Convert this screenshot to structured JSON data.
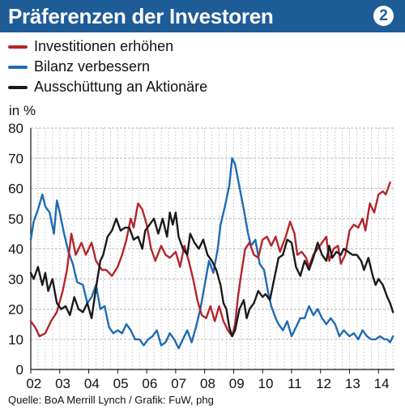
{
  "header": {
    "title": "Präferenzen der Investoren",
    "badge": "2"
  },
  "footer": {
    "source": "Quelle: BoA Merrill Lynch / Grafik: FuW, phg"
  },
  "chart_data": {
    "type": "line",
    "title": "Präferenzen der Investoren",
    "ylabel": "in %",
    "ylim": [
      0,
      80
    ],
    "yticks": [
      0,
      10,
      20,
      30,
      40,
      50,
      60,
      70,
      80
    ],
    "xlim": [
      2002,
      2014.55
    ],
    "xtick_labels": [
      "02",
      "03",
      "04",
      "05",
      "06",
      "07",
      "08",
      "09",
      "10",
      "11",
      "12",
      "13",
      "14"
    ],
    "grid": true,
    "legend": "top-left",
    "series": [
      {
        "name": "Investitionen erhöhen",
        "color": "#b3262d",
        "points": [
          [
            2002.0,
            16
          ],
          [
            2002.15,
            14
          ],
          [
            2002.3,
            11
          ],
          [
            2002.5,
            12
          ],
          [
            2002.7,
            16
          ],
          [
            2002.9,
            19
          ],
          [
            2003.1,
            26
          ],
          [
            2003.25,
            33
          ],
          [
            2003.4,
            45
          ],
          [
            2003.55,
            38
          ],
          [
            2003.75,
            42
          ],
          [
            2003.9,
            38
          ],
          [
            2004.1,
            42
          ],
          [
            2004.25,
            36
          ],
          [
            2004.45,
            33
          ],
          [
            2004.6,
            33
          ],
          [
            2004.8,
            31
          ],
          [
            2005.0,
            34
          ],
          [
            2005.15,
            38
          ],
          [
            2005.3,
            43
          ],
          [
            2005.45,
            50
          ],
          [
            2005.55,
            47
          ],
          [
            2005.7,
            55
          ],
          [
            2005.85,
            53
          ],
          [
            2006.0,
            48
          ],
          [
            2006.15,
            40
          ],
          [
            2006.3,
            36
          ],
          [
            2006.5,
            41
          ],
          [
            2006.65,
            38
          ],
          [
            2006.8,
            37
          ],
          [
            2007.0,
            39
          ],
          [
            2007.15,
            34
          ],
          [
            2007.3,
            41
          ],
          [
            2007.45,
            36
          ],
          [
            2007.6,
            30
          ],
          [
            2007.75,
            23
          ],
          [
            2007.9,
            18
          ],
          [
            2008.05,
            17
          ],
          [
            2008.2,
            21
          ],
          [
            2008.35,
            16
          ],
          [
            2008.5,
            21
          ],
          [
            2008.65,
            16
          ],
          [
            2008.8,
            13
          ],
          [
            2008.95,
            11
          ],
          [
            2009.05,
            15
          ],
          [
            2009.15,
            24
          ],
          [
            2009.25,
            31
          ],
          [
            2009.4,
            40
          ],
          [
            2009.55,
            42
          ],
          [
            2009.7,
            38
          ],
          [
            2009.85,
            37
          ],
          [
            2010.0,
            43
          ],
          [
            2010.15,
            44
          ],
          [
            2010.3,
            41
          ],
          [
            2010.45,
            44
          ],
          [
            2010.6,
            39
          ],
          [
            2010.8,
            44
          ],
          [
            2010.95,
            49
          ],
          [
            2011.1,
            45
          ],
          [
            2011.2,
            38
          ],
          [
            2011.35,
            39
          ],
          [
            2011.5,
            37
          ],
          [
            2011.6,
            34
          ],
          [
            2011.75,
            38
          ],
          [
            2011.9,
            40
          ],
          [
            2012.05,
            42
          ],
          [
            2012.2,
            44
          ],
          [
            2012.3,
            36
          ],
          [
            2012.45,
            40
          ],
          [
            2012.6,
            41
          ],
          [
            2012.7,
            35
          ],
          [
            2012.85,
            38
          ],
          [
            2013.0,
            46
          ],
          [
            2013.15,
            48
          ],
          [
            2013.3,
            47
          ],
          [
            2013.45,
            50
          ],
          [
            2013.55,
            46
          ],
          [
            2013.7,
            55
          ],
          [
            2013.85,
            52
          ],
          [
            2014.0,
            58
          ],
          [
            2014.15,
            59
          ],
          [
            2014.25,
            58
          ],
          [
            2014.4,
            62
          ]
        ]
      },
      {
        "name": "Bilanz verbessern",
        "color": "#1f6bb3",
        "points": [
          [
            2002.0,
            43
          ],
          [
            2002.1,
            49
          ],
          [
            2002.25,
            53
          ],
          [
            2002.4,
            58
          ],
          [
            2002.5,
            54
          ],
          [
            2002.65,
            52
          ],
          [
            2002.8,
            45
          ],
          [
            2002.9,
            56
          ],
          [
            2003.0,
            52
          ],
          [
            2003.15,
            45
          ],
          [
            2003.3,
            39
          ],
          [
            2003.45,
            35
          ],
          [
            2003.6,
            29
          ],
          [
            2003.8,
            28
          ],
          [
            2003.95,
            22
          ],
          [
            2004.1,
            24
          ],
          [
            2004.25,
            28
          ],
          [
            2004.4,
            20
          ],
          [
            2004.55,
            21
          ],
          [
            2004.7,
            14
          ],
          [
            2004.85,
            12
          ],
          [
            2005.0,
            13
          ],
          [
            2005.15,
            12
          ],
          [
            2005.3,
            15
          ],
          [
            2005.45,
            13
          ],
          [
            2005.6,
            10
          ],
          [
            2005.75,
            10
          ],
          [
            2005.9,
            8
          ],
          [
            2006.05,
            10
          ],
          [
            2006.2,
            11
          ],
          [
            2006.35,
            13
          ],
          [
            2006.5,
            8
          ],
          [
            2006.65,
            9
          ],
          [
            2006.8,
            12
          ],
          [
            2006.95,
            10
          ],
          [
            2007.1,
            7
          ],
          [
            2007.25,
            10
          ],
          [
            2007.4,
            13
          ],
          [
            2007.55,
            9
          ],
          [
            2007.7,
            14
          ],
          [
            2007.85,
            20
          ],
          [
            2008.0,
            28
          ],
          [
            2008.15,
            36
          ],
          [
            2008.3,
            32
          ],
          [
            2008.45,
            40
          ],
          [
            2008.55,
            48
          ],
          [
            2008.7,
            54
          ],
          [
            2008.85,
            61
          ],
          [
            2008.95,
            70
          ],
          [
            2009.05,
            68
          ],
          [
            2009.15,
            63
          ],
          [
            2009.25,
            58
          ],
          [
            2009.35,
            53
          ],
          [
            2009.5,
            45
          ],
          [
            2009.6,
            41
          ],
          [
            2009.75,
            43
          ],
          [
            2009.9,
            35
          ],
          [
            2010.05,
            33
          ],
          [
            2010.2,
            25
          ],
          [
            2010.3,
            21
          ],
          [
            2010.45,
            17
          ],
          [
            2010.55,
            15
          ],
          [
            2010.7,
            13
          ],
          [
            2010.85,
            16
          ],
          [
            2011.0,
            11
          ],
          [
            2011.15,
            14
          ],
          [
            2011.3,
            17
          ],
          [
            2011.45,
            17
          ],
          [
            2011.6,
            21
          ],
          [
            2011.75,
            18
          ],
          [
            2011.9,
            20
          ],
          [
            2012.05,
            17
          ],
          [
            2012.2,
            15
          ],
          [
            2012.35,
            17
          ],
          [
            2012.5,
            15
          ],
          [
            2012.65,
            11
          ],
          [
            2012.8,
            13
          ],
          [
            2013.0,
            11
          ],
          [
            2013.15,
            12
          ],
          [
            2013.3,
            10
          ],
          [
            2013.45,
            13
          ],
          [
            2013.6,
            11
          ],
          [
            2013.75,
            10
          ],
          [
            2013.9,
            10
          ],
          [
            2014.05,
            11
          ],
          [
            2014.2,
            10
          ],
          [
            2014.3,
            10
          ],
          [
            2014.4,
            9
          ],
          [
            2014.5,
            11
          ]
        ]
      },
      {
        "name": "Ausschüttung an Aktionäre",
        "color": "#1a1a1a",
        "points": [
          [
            2002.0,
            32
          ],
          [
            2002.1,
            30
          ],
          [
            2002.25,
            34
          ],
          [
            2002.4,
            28
          ],
          [
            2002.5,
            32
          ],
          [
            2002.6,
            26
          ],
          [
            2002.75,
            30
          ],
          [
            2002.9,
            22
          ],
          [
            2003.05,
            20
          ],
          [
            2003.2,
            21
          ],
          [
            2003.35,
            18
          ],
          [
            2003.5,
            24
          ],
          [
            2003.65,
            20
          ],
          [
            2003.8,
            19
          ],
          [
            2003.95,
            22
          ],
          [
            2004.1,
            17
          ],
          [
            2004.25,
            27
          ],
          [
            2004.4,
            36
          ],
          [
            2004.5,
            38
          ],
          [
            2004.65,
            44
          ],
          [
            2004.8,
            46
          ],
          [
            2004.95,
            50
          ],
          [
            2005.1,
            46
          ],
          [
            2005.25,
            47
          ],
          [
            2005.4,
            47
          ],
          [
            2005.55,
            43
          ],
          [
            2005.7,
            44
          ],
          [
            2005.85,
            40
          ],
          [
            2005.95,
            46
          ],
          [
            2006.1,
            48
          ],
          [
            2006.25,
            50
          ],
          [
            2006.4,
            45
          ],
          [
            2006.55,
            50
          ],
          [
            2006.7,
            44
          ],
          [
            2006.8,
            52
          ],
          [
            2006.9,
            48
          ],
          [
            2007.0,
            52
          ],
          [
            2007.1,
            44
          ],
          [
            2007.25,
            40
          ],
          [
            2007.4,
            38
          ],
          [
            2007.5,
            45
          ],
          [
            2007.65,
            42
          ],
          [
            2007.8,
            40
          ],
          [
            2007.95,
            43
          ],
          [
            2008.1,
            38
          ],
          [
            2008.25,
            36
          ],
          [
            2008.4,
            33
          ],
          [
            2008.55,
            28
          ],
          [
            2008.65,
            22
          ],
          [
            2008.75,
            20
          ],
          [
            2008.85,
            14
          ],
          [
            2008.95,
            11
          ],
          [
            2009.05,
            13
          ],
          [
            2009.2,
            20
          ],
          [
            2009.35,
            23
          ],
          [
            2009.45,
            17
          ],
          [
            2009.55,
            20
          ],
          [
            2009.7,
            22
          ],
          [
            2009.85,
            26
          ],
          [
            2010.0,
            24
          ],
          [
            2010.1,
            25
          ],
          [
            2010.25,
            23
          ],
          [
            2010.4,
            30
          ],
          [
            2010.55,
            37
          ],
          [
            2010.7,
            38
          ],
          [
            2010.85,
            43
          ],
          [
            2011.0,
            42
          ],
          [
            2011.15,
            34
          ],
          [
            2011.3,
            31
          ],
          [
            2011.45,
            36
          ],
          [
            2011.6,
            33
          ],
          [
            2011.75,
            37
          ],
          [
            2011.9,
            42
          ],
          [
            2012.05,
            38
          ],
          [
            2012.2,
            36
          ],
          [
            2012.3,
            41
          ],
          [
            2012.4,
            37
          ],
          [
            2012.55,
            39
          ],
          [
            2012.7,
            38
          ],
          [
            2012.8,
            40
          ],
          [
            2012.95,
            39
          ],
          [
            2013.1,
            38
          ],
          [
            2013.25,
            38
          ],
          [
            2013.4,
            36
          ],
          [
            2013.5,
            33
          ],
          [
            2013.65,
            37
          ],
          [
            2013.8,
            31
          ],
          [
            2013.9,
            28
          ],
          [
            2014.0,
            30
          ],
          [
            2014.15,
            28
          ],
          [
            2014.3,
            24
          ],
          [
            2014.4,
            22
          ],
          [
            2014.5,
            19
          ]
        ]
      }
    ]
  }
}
